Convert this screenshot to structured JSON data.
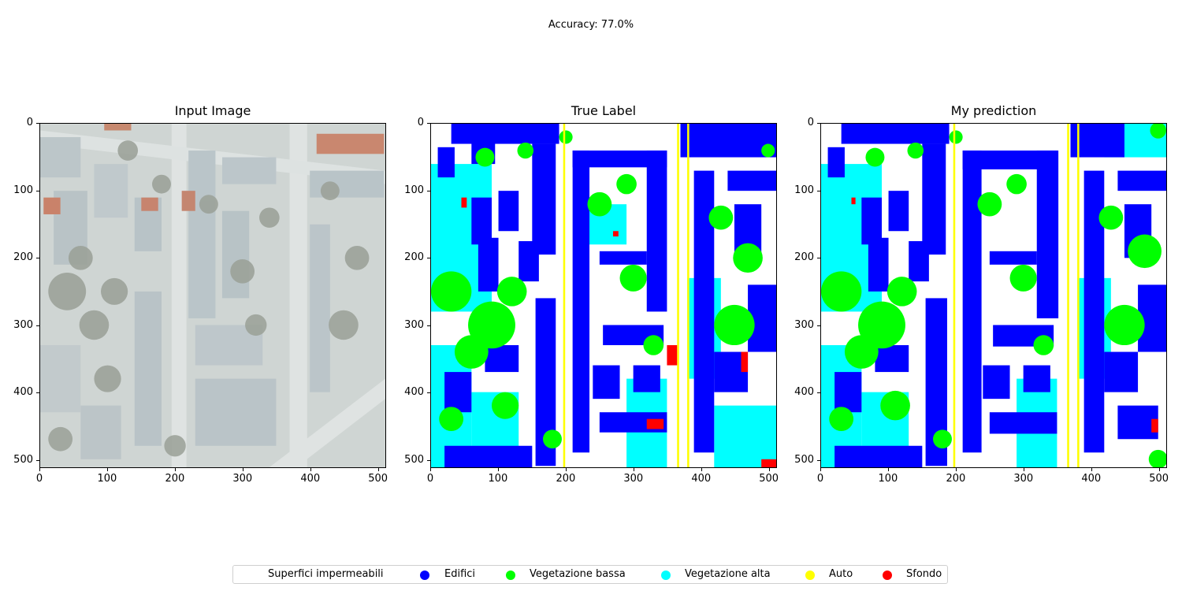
{
  "figure": {
    "suptitle": "Accuracy: 77.0%"
  },
  "panels": [
    {
      "title": "Input Image"
    },
    {
      "title": "True Label"
    },
    {
      "title": "My prediction"
    }
  ],
  "axes": {
    "x_ticks": [
      "0",
      "100",
      "200",
      "300",
      "400",
      "500"
    ],
    "y_ticks": [
      "0",
      "100",
      "200",
      "300",
      "400",
      "500"
    ]
  },
  "legend": {
    "items": [
      {
        "label": "Superfici impermeabili",
        "color": "#ffffff"
      },
      {
        "label": "Edifici",
        "color": "#0000ff"
      },
      {
        "label": "Vegetazione bassa",
        "color": "#00ff00"
      },
      {
        "label": "Vegetazione alta",
        "color": "#00ffff"
      },
      {
        "label": "Auto",
        "color": "#ffff00"
      },
      {
        "label": "Sfondo",
        "color": "#ff0000"
      }
    ]
  }
}
